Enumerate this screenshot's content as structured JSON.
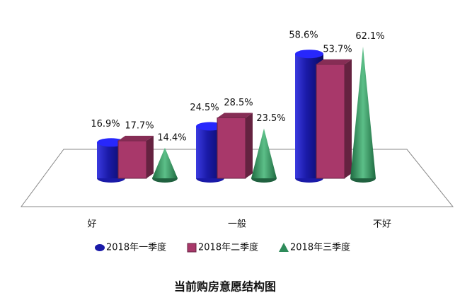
{
  "chart_data": {
    "type": "bar3d",
    "title": "当前购房意愿结构图",
    "categories": [
      "好",
      "一般",
      "不好"
    ],
    "series": [
      {
        "name": "2018年一季度",
        "color": "#1a1aa8",
        "shape": "cylinder",
        "values": [
          16.9,
          24.5,
          58.6
        ],
        "value_labels": [
          "16.9%",
          "24.5%",
          "58.6%"
        ]
      },
      {
        "name": "2018年二季度",
        "color": "#a8386a",
        "shape": "box",
        "values": [
          17.7,
          28.5,
          53.7
        ],
        "value_labels": [
          "17.7%",
          "28.5%",
          "53.7%"
        ]
      },
      {
        "name": "2018年三季度",
        "color": "#2e8b5a",
        "shape": "cone",
        "values": [
          14.4,
          23.5,
          62.1
        ],
        "value_labels": [
          "14.4%",
          "23.5%",
          "62.1%"
        ]
      }
    ]
  }
}
